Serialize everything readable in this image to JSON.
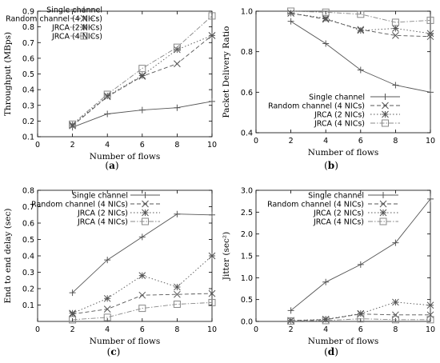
{
  "chart_data": [
    {
      "type": "line",
      "panel_label": "a",
      "xlabel": "Number of flows",
      "ylabel": "Throughput (MBps)",
      "xlim": [
        0,
        10
      ],
      "ylim": [
        0.1,
        0.9
      ],
      "xticks": [
        0,
        2,
        4,
        6,
        8,
        10
      ],
      "yticks": [
        0.1,
        0.2,
        0.3,
        0.4,
        0.5,
        0.6,
        0.7,
        0.8,
        0.9
      ],
      "legend_position": "top-left",
      "x": [
        2,
        4,
        6,
        8,
        10
      ],
      "series": [
        {
          "name": "Single channel",
          "marker": "plus",
          "dash": "solid",
          "values": [
            0.16,
            0.245,
            0.27,
            0.285,
            0.325
          ]
        },
        {
          "name": "Random channel (4 NICs)",
          "marker": "x",
          "dash": "dash",
          "values": [
            0.17,
            0.355,
            0.485,
            0.565,
            0.745
          ]
        },
        {
          "name": "JRCA (2 NICs)",
          "marker": "star",
          "dash": "dot",
          "values": [
            0.175,
            0.36,
            0.49,
            0.655,
            0.745
          ]
        },
        {
          "name": "JRCA (4 NICs)",
          "marker": "square",
          "dash": "dashdot",
          "values": [
            0.18,
            0.37,
            0.535,
            0.67,
            0.87
          ]
        }
      ]
    },
    {
      "type": "line",
      "panel_label": "b",
      "xlabel": "Number of flows",
      "ylabel": "Packet Delivery Ratio",
      "xlim": [
        0,
        10
      ],
      "ylim": [
        0.4,
        1.0
      ],
      "xticks": [
        0,
        2,
        4,
        6,
        8,
        10
      ],
      "yticks": [
        0.4,
        0.6,
        0.8,
        1.0
      ],
      "ytick_labels": [
        "0.4",
        "0.6",
        "0.8",
        "1.0"
      ],
      "legend_position": "bottom-right",
      "x": [
        2,
        4,
        6,
        8,
        10
      ],
      "series": [
        {
          "name": "Single channel",
          "marker": "plus",
          "dash": "solid",
          "values": [
            0.95,
            0.84,
            0.71,
            0.635,
            0.6
          ]
        },
        {
          "name": "Random channel (4 NICs)",
          "marker": "x",
          "dash": "dash",
          "values": [
            0.99,
            0.96,
            0.91,
            0.88,
            0.875
          ]
        },
        {
          "name": "JRCA (2 NICs)",
          "marker": "star",
          "dash": "dot",
          "values": [
            0.99,
            0.965,
            0.905,
            0.915,
            0.89
          ]
        },
        {
          "name": "JRCA (4 NICs)",
          "marker": "square",
          "dash": "dashdot",
          "values": [
            1.0,
            0.995,
            0.985,
            0.945,
            0.955
          ]
        }
      ]
    },
    {
      "type": "line",
      "panel_label": "c",
      "xlabel": "Number of flows",
      "ylabel": "End to end delay (sec)",
      "xlim": [
        0,
        10
      ],
      "ylim": [
        0,
        0.8
      ],
      "xticks": [
        0,
        2,
        4,
        6,
        8,
        10
      ],
      "yticks": [
        0.1,
        0.2,
        0.3,
        0.4,
        0.5,
        0.6,
        0.7,
        0.8
      ],
      "legend_position": "top-right",
      "x": [
        2,
        4,
        6,
        8,
        10
      ],
      "series": [
        {
          "name": "Single channel",
          "marker": "plus",
          "dash": "solid",
          "values": [
            0.175,
            0.375,
            0.515,
            0.655,
            0.65
          ]
        },
        {
          "name": "Random channel (4 NICs)",
          "marker": "x",
          "dash": "dash",
          "values": [
            0.045,
            0.075,
            0.16,
            0.165,
            0.17
          ]
        },
        {
          "name": "JRCA (2 NICs)",
          "marker": "star",
          "dash": "dot",
          "values": [
            0.05,
            0.14,
            0.28,
            0.21,
            0.4
          ]
        },
        {
          "name": "JRCA (4 NICs)",
          "marker": "square",
          "dash": "dashdot",
          "values": [
            0.01,
            0.025,
            0.08,
            0.105,
            0.115
          ]
        }
      ]
    },
    {
      "type": "line",
      "panel_label": "d",
      "xlabel": "Number of flows",
      "ylabel": "Jitter (sec²)",
      "xlim": [
        0,
        10
      ],
      "ylim": [
        0,
        3.0
      ],
      "xticks": [
        0,
        2,
        4,
        6,
        8,
        10
      ],
      "yticks": [
        0.0,
        0.5,
        1.0,
        1.5,
        2.0,
        2.5,
        3.0
      ],
      "ytick_labels": [
        "0.0",
        "0.5",
        "1.0",
        "1.5",
        "2.0",
        "2.5",
        "3.0"
      ],
      "legend_position": "top-left",
      "x": [
        2,
        4,
        6,
        8,
        10
      ],
      "series": [
        {
          "name": "Single channel",
          "marker": "plus",
          "dash": "solid",
          "values": [
            0.25,
            0.9,
            1.3,
            1.8,
            2.8
          ]
        },
        {
          "name": "Random channel (4 NICs)",
          "marker": "x",
          "dash": "dash",
          "values": [
            0.02,
            0.04,
            0.17,
            0.15,
            0.15
          ]
        },
        {
          "name": "JRCA (2 NICs)",
          "marker": "star",
          "dash": "dot",
          "values": [
            0.02,
            0.05,
            0.18,
            0.44,
            0.37
          ]
        },
        {
          "name": "JRCA (4 NICs)",
          "marker": "square",
          "dash": "dashdot",
          "values": [
            0.01,
            0.02,
            0.06,
            0.04,
            0.04
          ]
        }
      ]
    }
  ]
}
